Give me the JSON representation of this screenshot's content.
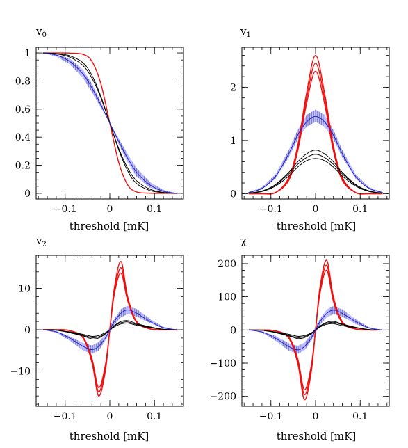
{
  "colors": {
    "red": "#ee1111",
    "blue": "#2222cc",
    "black": "#000000"
  },
  "chart_data": [
    {
      "type": "line",
      "title": "v",
      "title_sub": "0",
      "xlabel": "threshold [mK]",
      "ylabel": "",
      "xlim": [
        -0.165,
        0.165
      ],
      "ylim": [
        -0.04,
        1.04
      ],
      "xticks": [
        -0.1,
        0,
        0.1
      ],
      "xtick_labels": [
        "−0.1",
        "0",
        "0.1"
      ],
      "yticks": [
        0,
        0.2,
        0.4,
        0.6,
        0.8,
        1
      ],
      "ytick_labels": [
        "0",
        "0.2",
        "0.4",
        "0.6",
        "0.8",
        "1"
      ],
      "x": [
        -0.15,
        -0.12,
        -0.09,
        -0.06,
        -0.04,
        -0.02,
        0,
        0.02,
        0.04,
        0.06,
        0.09,
        0.12,
        0.15
      ],
      "series": [
        {
          "color": "red",
          "values": [
            1,
            1,
            0.999,
            0.99,
            0.94,
            0.78,
            0.5,
            0.22,
            0.06,
            0.01,
            0.001,
            0,
            0
          ]
        },
        {
          "color": "black",
          "values": [
            1,
            0.995,
            0.98,
            0.93,
            0.84,
            0.69,
            0.5,
            0.31,
            0.16,
            0.07,
            0.02,
            0.005,
            0
          ]
        },
        {
          "color": "black",
          "values": [
            1,
            0.993,
            0.97,
            0.91,
            0.82,
            0.68,
            0.5,
            0.32,
            0.18,
            0.09,
            0.03,
            0.007,
            0
          ]
        },
        {
          "color": "blue",
          "values": [
            1,
            0.985,
            0.94,
            0.85,
            0.75,
            0.63,
            0.5,
            0.37,
            0.25,
            0.15,
            0.06,
            0.015,
            0
          ]
        }
      ],
      "band": {
        "color": "blue",
        "lower": [
          1,
          0.975,
          0.92,
          0.82,
          0.72,
          0.61,
          0.5,
          0.35,
          0.22,
          0.12,
          0.04,
          0.01,
          0
        ],
        "upper": [
          1,
          0.99,
          0.96,
          0.88,
          0.78,
          0.65,
          0.5,
          0.39,
          0.28,
          0.18,
          0.08,
          0.025,
          0
        ]
      }
    },
    {
      "type": "line",
      "title": "v",
      "title_sub": "1",
      "xlabel": "threshold [mK]",
      "ylabel": "",
      "xlim": [
        -0.165,
        0.165
      ],
      "ylim": [
        -0.1,
        2.75
      ],
      "xticks": [
        -0.1,
        0,
        0.1
      ],
      "xtick_labels": [
        "−0.1",
        "0",
        "0.1"
      ],
      "yticks": [
        0,
        1,
        2
      ],
      "ytick_labels": [
        "0",
        "1",
        "2"
      ],
      "x": [
        -0.15,
        -0.12,
        -0.09,
        -0.06,
        -0.04,
        -0.02,
        0,
        0.02,
        0.04,
        0.06,
        0.09,
        0.12,
        0.15
      ],
      "series": [
        {
          "color": "red",
          "values": [
            0,
            0,
            0.02,
            0.3,
            0.9,
            1.9,
            2.6,
            1.9,
            0.9,
            0.3,
            0.02,
            0,
            0
          ]
        },
        {
          "color": "red",
          "values": [
            0,
            0,
            0.02,
            0.28,
            0.85,
            1.8,
            2.45,
            1.8,
            0.85,
            0.28,
            0.02,
            0,
            0
          ]
        },
        {
          "color": "red",
          "values": [
            0,
            0,
            0.02,
            0.25,
            0.8,
            1.7,
            2.3,
            1.7,
            0.8,
            0.25,
            0.02,
            0,
            0
          ]
        },
        {
          "color": "black",
          "values": [
            0.01,
            0.05,
            0.17,
            0.4,
            0.6,
            0.75,
            0.82,
            0.75,
            0.6,
            0.4,
            0.17,
            0.05,
            0.01
          ]
        },
        {
          "color": "black",
          "values": [
            0.01,
            0.05,
            0.16,
            0.37,
            0.55,
            0.68,
            0.74,
            0.68,
            0.55,
            0.37,
            0.16,
            0.05,
            0.01
          ]
        },
        {
          "color": "black",
          "values": [
            0.01,
            0.04,
            0.14,
            0.33,
            0.5,
            0.62,
            0.66,
            0.62,
            0.5,
            0.33,
            0.14,
            0.04,
            0.01
          ]
        },
        {
          "color": "blue",
          "values": [
            0.02,
            0.1,
            0.32,
            0.75,
            1.1,
            1.35,
            1.45,
            1.35,
            1.1,
            0.75,
            0.32,
            0.1,
            0.02
          ]
        }
      ],
      "band": {
        "color": "blue",
        "lower": [
          0.01,
          0.08,
          0.28,
          0.68,
          1.02,
          1.26,
          1.35,
          1.26,
          1.02,
          0.68,
          0.28,
          0.08,
          0.01
        ],
        "upper": [
          0.03,
          0.12,
          0.36,
          0.82,
          1.2,
          1.48,
          1.58,
          1.48,
          1.2,
          0.82,
          0.36,
          0.12,
          0.03
        ]
      }
    },
    {
      "type": "line",
      "title": "v",
      "title_sub": "2",
      "xlabel": "threshold [mK]",
      "ylabel": "",
      "xlim": [
        -0.165,
        0.165
      ],
      "ylim": [
        -18.5,
        18
      ],
      "xticks": [
        -0.1,
        0,
        0.1
      ],
      "xtick_labels": [
        "−0.1",
        "0",
        "0.1"
      ],
      "yticks": [
        -10,
        0,
        10
      ],
      "ytick_labels": [
        "−10",
        "0",
        "10"
      ],
      "x": [
        -0.15,
        -0.12,
        -0.09,
        -0.06,
        -0.04,
        -0.025,
        -0.01,
        0,
        0.01,
        0.025,
        0.04,
        0.06,
        0.09,
        0.12,
        0.15
      ],
      "series": [
        {
          "color": "red",
          "values": [
            0,
            0,
            -0.2,
            -2,
            -8,
            -16,
            -10,
            0,
            10,
            16.5,
            8,
            2,
            0.2,
            0,
            0
          ]
        },
        {
          "color": "red",
          "values": [
            0,
            0,
            -0.2,
            -2,
            -7.5,
            -15,
            -9,
            0,
            9,
            15,
            7.5,
            2,
            0.2,
            0,
            0
          ]
        },
        {
          "color": "red",
          "values": [
            0,
            0,
            -0.2,
            -1.8,
            -7,
            -14,
            -8.5,
            0,
            8.5,
            13.7,
            7,
            1.8,
            0.2,
            0,
            0
          ]
        },
        {
          "color": "black",
          "values": [
            0,
            -0.1,
            -0.5,
            -1.1,
            -1.6,
            -1.4,
            -0.7,
            0,
            0.7,
            1.4,
            1.6,
            1.1,
            0.5,
            0.1,
            0
          ]
        },
        {
          "color": "black",
          "values": [
            0,
            -0.1,
            -0.6,
            -1.3,
            -1.9,
            -1.7,
            -0.9,
            0,
            0.9,
            1.7,
            1.9,
            1.3,
            0.6,
            0.1,
            0
          ]
        },
        {
          "color": "black",
          "values": [
            0,
            -0.1,
            -0.7,
            -1.5,
            -2.2,
            -2.0,
            -1.0,
            0,
            1.0,
            2.0,
            2.2,
            1.5,
            0.7,
            0.1,
            0
          ]
        },
        {
          "color": "blue",
          "values": [
            0,
            -0.5,
            -2,
            -4,
            -4.8,
            -4,
            -2,
            0,
            2,
            4,
            4.8,
            4,
            2,
            0.5,
            0
          ]
        }
      ],
      "band": {
        "color": "blue",
        "lower": [
          0,
          -0.7,
          -2.6,
          -5,
          -5.8,
          -5,
          -2.6,
          -0.8,
          1.2,
          3.0,
          3.8,
          3.2,
          1.6,
          0.3,
          0
        ],
        "upper": [
          0,
          -0.3,
          -1.6,
          -3.2,
          -3.8,
          -3.0,
          -1.2,
          0.8,
          2.6,
          5,
          5.8,
          5,
          2.6,
          0.7,
          0
        ]
      }
    },
    {
      "type": "line",
      "title": "χ",
      "title_sub": "",
      "xlabel": "threshold [mK]",
      "ylabel": "",
      "xlim": [
        -0.165,
        0.165
      ],
      "ylim": [
        -230,
        225
      ],
      "xticks": [
        -0.1,
        0,
        0.1
      ],
      "xtick_labels": [
        "−0.1",
        "0",
        "0.1"
      ],
      "yticks": [
        -200,
        -100,
        0,
        100,
        200
      ],
      "ytick_labels": [
        "−200",
        "−100",
        "0",
        "100",
        "200"
      ],
      "x": [
        -0.15,
        -0.12,
        -0.09,
        -0.06,
        -0.04,
        -0.025,
        -0.01,
        0,
        0.01,
        0.025,
        0.04,
        0.06,
        0.09,
        0.12,
        0.15
      ],
      "series": [
        {
          "color": "red",
          "values": [
            0,
            0,
            -3,
            -25,
            -100,
            -210,
            -130,
            0,
            130,
            210,
            100,
            25,
            3,
            0,
            0
          ]
        },
        {
          "color": "red",
          "values": [
            0,
            0,
            -3,
            -23,
            -93,
            -195,
            -120,
            0,
            120,
            195,
            93,
            23,
            3,
            0,
            0
          ]
        },
        {
          "color": "red",
          "values": [
            0,
            0,
            -2.5,
            -21,
            -86,
            -180,
            -110,
            0,
            110,
            180,
            86,
            21,
            2.5,
            0,
            0
          ]
        },
        {
          "color": "black",
          "values": [
            0,
            -1,
            -6,
            -13,
            -19,
            -17,
            -9,
            0,
            9,
            17,
            19,
            13,
            6,
            1,
            0
          ]
        },
        {
          "color": "black",
          "values": [
            0,
            -1,
            -7,
            -16,
            -23,
            -20,
            -11,
            0,
            11,
            20,
            23,
            16,
            7,
            1,
            0
          ]
        },
        {
          "color": "black",
          "values": [
            0,
            -1,
            -8,
            -18,
            -26,
            -23,
            -12,
            0,
            12,
            23,
            26,
            18,
            8,
            1,
            0
          ]
        },
        {
          "color": "blue",
          "values": [
            0,
            -6,
            -25,
            -50,
            -60,
            -50,
            -25,
            0,
            25,
            50,
            60,
            50,
            25,
            6,
            0
          ]
        }
      ],
      "band": {
        "color": "blue",
        "lower": [
          0,
          -8,
          -32,
          -62,
          -72,
          -62,
          -33,
          -10,
          15,
          38,
          48,
          40,
          18,
          4,
          0
        ],
        "upper": [
          0,
          -4,
          -18,
          -40,
          -48,
          -38,
          -15,
          10,
          33,
          62,
          72,
          62,
          32,
          8,
          0
        ]
      }
    }
  ]
}
